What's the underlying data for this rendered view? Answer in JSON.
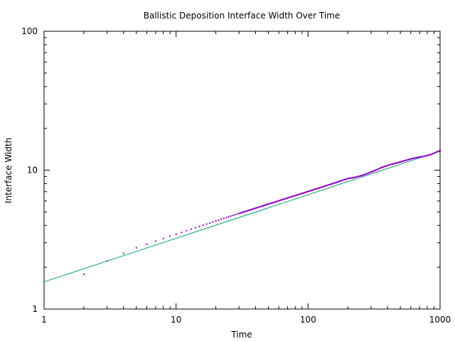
{
  "chart_data": {
    "type": "scatter",
    "title": "Ballistic Deposition Interface Width Over Time",
    "xlabel": "Time",
    "ylabel": "Interface Width",
    "xscale": "log",
    "yscale": "log",
    "xlim": [
      1,
      1000
    ],
    "ylim": [
      1,
      100
    ],
    "grid": false,
    "legend": "none",
    "x_ticks": [
      {
        "value": 1,
        "label": "1"
      },
      {
        "value": 10,
        "label": "10"
      },
      {
        "value": 100,
        "label": "100"
      },
      {
        "value": 1000,
        "label": "1000"
      }
    ],
    "y_ticks": [
      {
        "value": 1,
        "label": "1"
      },
      {
        "value": 10,
        "label": "10"
      },
      {
        "value": 100,
        "label": "100"
      }
    ],
    "series": [
      {
        "kind": "points",
        "color": "#9400d3",
        "x": [
          2,
          3,
          4,
          5,
          6,
          7,
          8,
          9,
          10,
          11,
          12,
          13,
          14,
          15,
          16,
          17,
          18,
          19,
          20,
          21,
          22,
          23,
          24,
          25,
          26,
          27,
          28,
          29,
          30,
          32,
          34,
          36,
          38,
          40,
          45,
          50,
          55,
          60,
          65,
          70,
          80,
          90,
          100,
          110,
          120,
          130,
          140,
          150,
          160,
          180,
          200,
          220,
          240,
          260,
          280,
          300,
          330,
          360,
          400,
          450,
          500,
          550,
          600,
          650,
          700,
          750,
          800,
          850,
          900,
          950,
          1000
        ],
        "y": [
          1.78,
          2.22,
          2.52,
          2.76,
          2.93,
          3.08,
          3.22,
          3.35,
          3.46,
          3.56,
          3.66,
          3.76,
          3.85,
          3.93,
          4.01,
          4.09,
          4.16,
          4.24,
          4.31,
          4.37,
          4.44,
          4.5,
          4.56,
          4.62,
          4.67,
          4.73,
          4.78,
          4.83,
          4.88,
          4.98,
          5.07,
          5.15,
          5.24,
          5.32,
          5.52,
          5.7,
          5.86,
          6.02,
          6.17,
          6.31,
          6.56,
          6.8,
          7.02,
          7.23,
          7.42,
          7.6,
          7.78,
          7.94,
          8.1,
          8.42,
          8.7,
          8.82,
          9.0,
          9.2,
          9.45,
          9.7,
          10.05,
          10.45,
          10.8,
          11.15,
          11.45,
          11.75,
          12.05,
          12.25,
          12.45,
          12.55,
          12.75,
          12.95,
          13.25,
          13.55,
          13.8
        ]
      },
      {
        "kind": "fit-line",
        "color": "#009e73",
        "x": [
          1,
          1000
        ],
        "y": [
          1.57,
          13.7
        ]
      }
    ]
  }
}
